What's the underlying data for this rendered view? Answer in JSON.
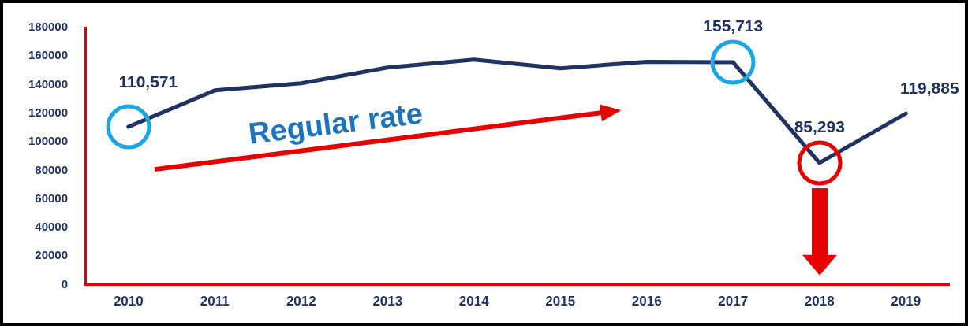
{
  "chart_data": {
    "type": "line",
    "categories": [
      "2010",
      "2011",
      "2012",
      "2013",
      "2014",
      "2015",
      "2016",
      "2017",
      "2018",
      "2019"
    ],
    "series": [
      {
        "color": "#1f3261",
        "values": [
          110571,
          136000,
          141000,
          152000,
          157500,
          151500,
          156000,
          155713,
          85293,
          119885
        ],
        "value_labels": [
          "110,571",
          null,
          null,
          null,
          null,
          null,
          null,
          "155,713",
          "85,293",
          "119,885"
        ]
      }
    ],
    "ylim": [
      0,
      180000
    ],
    "yticks": [
      0,
      20000,
      40000,
      60000,
      80000,
      100000,
      120000,
      140000,
      160000,
      180000
    ],
    "grid": false,
    "legend": false,
    "marker": "none",
    "line_style": "solid",
    "annotations": [
      "Regular rate"
    ]
  }
}
